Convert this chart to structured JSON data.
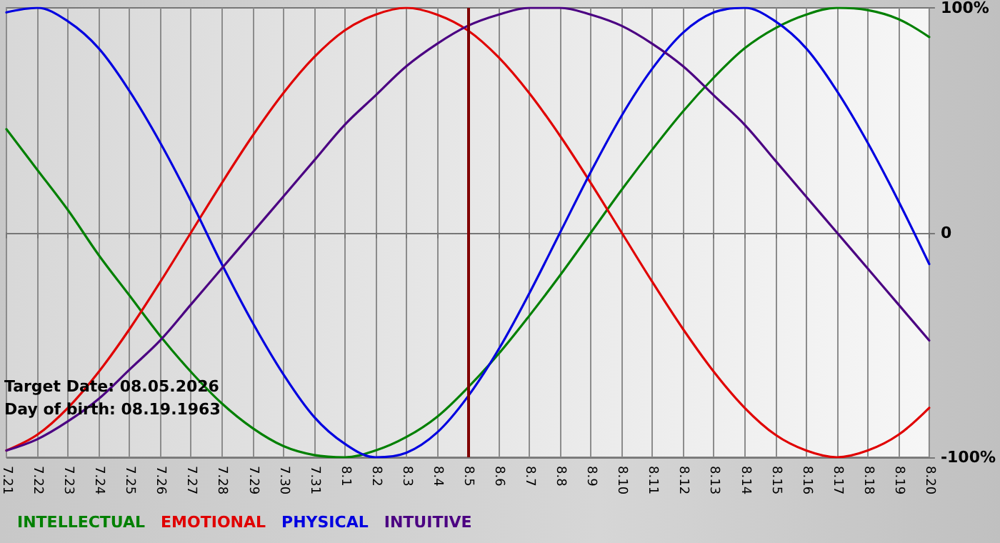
{
  "chart_data": {
    "type": "line",
    "categories": [
      "7.21",
      "7.22",
      "7.23",
      "7.24",
      "7.25",
      "7.26",
      "7.27",
      "7.28",
      "7.29",
      "7.30",
      "7.31",
      "8.1",
      "8.2",
      "8.3",
      "8.4",
      "8.5",
      "8.6",
      "8.7",
      "8.8",
      "8.9",
      "8.10",
      "8.11",
      "8.12",
      "8.13",
      "8.14",
      "8.15",
      "8.16",
      "8.17",
      "8.18",
      "8.19",
      "8.20"
    ],
    "series": [
      {
        "name": "INTELLECTUAL",
        "color": "#008000",
        "values": [
          46,
          28,
          10,
          -10,
          -28,
          -46,
          -62,
          -76,
          -87,
          -95,
          -99,
          -100,
          -97,
          -91,
          -82,
          -69,
          -54,
          -37,
          -19,
          0,
          19,
          37,
          54,
          69,
          82,
          91,
          97,
          100,
          99,
          95,
          87
        ]
      },
      {
        "name": "EMOTIONAL",
        "color": "#e00000",
        "values": [
          -97,
          -90,
          -78,
          -62,
          -43,
          -22,
          0,
          22,
          43,
          62,
          78,
          90,
          97,
          100,
          97,
          90,
          78,
          62,
          43,
          22,
          0,
          -22,
          -43,
          -62,
          -78,
          -90,
          -97,
          -100,
          -97,
          -90,
          -78
        ]
      },
      {
        "name": "PHYSICAL",
        "color": "#0000e0",
        "values": [
          98,
          100,
          94,
          82,
          63,
          40,
          14,
          -14,
          -40,
          -63,
          -82,
          -94,
          -100,
          -98,
          -89,
          -73,
          -52,
          -27,
          0,
          27,
          52,
          73,
          89,
          98,
          100,
          94,
          82,
          63,
          40,
          14,
          -14
        ]
      },
      {
        "name": "INTUITIVE",
        "color": "#4b0082",
        "values": [
          -97,
          -92,
          -84,
          -74,
          -61,
          -48,
          -32,
          -16,
          0,
          16,
          32,
          48,
          61,
          74,
          84,
          92,
          97,
          100,
          100,
          97,
          92,
          84,
          74,
          61,
          48,
          32,
          16,
          0,
          -16,
          -32,
          -48
        ]
      }
    ],
    "ylim": [
      -100,
      100
    ],
    "yticks": [
      {
        "value": 100,
        "label": "100%"
      },
      0,
      {
        "value": -100,
        "label": "-100%"
      }
    ],
    "grid": true,
    "legend": "bottom left",
    "marker": "none",
    "line_style": "solid",
    "ref_lines": [
      {
        "axis": "x",
        "value": "8.5",
        "color": "#800000"
      }
    ],
    "annotations": [
      "Target Date: 08.05.2026",
      "Day of birth: 08.19.1963"
    ]
  }
}
